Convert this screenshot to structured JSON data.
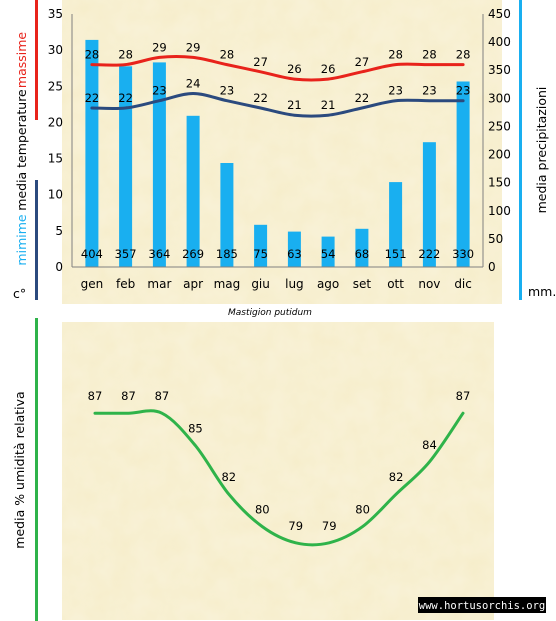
{
  "chart_data": [
    {
      "type": "bar",
      "categories": [
        "gen",
        "feb",
        "mar",
        "apr",
        "mag",
        "giu",
        "lug",
        "ago",
        "set",
        "ott",
        "nov",
        "dic"
      ],
      "y_left_ticks": [
        "0",
        "5",
        "10",
        "15",
        "20",
        "25",
        "30",
        "35"
      ],
      "y_right_ticks": [
        "0",
        "50",
        "100",
        "150",
        "200",
        "250",
        "300",
        "350",
        "400",
        "450"
      ],
      "y_left_range": [
        0,
        35
      ],
      "y_right_range": [
        0,
        450
      ],
      "series": [
        {
          "name": "media precipitazioni",
          "kind": "bar",
          "axis": "right",
          "color": "#19aff0",
          "values": [
            404,
            357,
            364,
            269,
            185,
            75,
            63,
            54,
            68,
            151,
            222,
            330
          ]
        },
        {
          "name": "massime",
          "kind": "line",
          "axis": "left",
          "color": "#e8231b",
          "values": [
            28,
            28,
            29,
            29,
            28,
            27,
            26,
            26,
            27,
            28,
            28,
            28
          ]
        },
        {
          "name": "mimime",
          "kind": "line",
          "axis": "left",
          "color": "#2b4a7e",
          "values": [
            22,
            22,
            23,
            24,
            23,
            22,
            21,
            21,
            22,
            23,
            23,
            23
          ]
        }
      ],
      "labels": {
        "left_max": "massime",
        "left_mid": "media  temperature",
        "left_min": "mimime",
        "left_unit": "c°",
        "right_title": "media  precipitazioni",
        "right_unit": "mm."
      },
      "grid": false,
      "legend": "none"
    },
    {
      "type": "line",
      "categories": [
        "gen",
        "feb",
        "mar",
        "apr",
        "mag",
        "giu",
        "lug",
        "ago",
        "set",
        "ott",
        "nov",
        "dic"
      ],
      "series": [
        {
          "name": "media % umidità relativa",
          "color": "#2fb34a",
          "values": [
            87,
            87,
            87,
            85,
            82,
            80,
            79,
            79,
            80,
            82,
            84,
            87
          ]
        }
      ],
      "ylabel": "media  %  umidità relativa",
      "axis_ticks": false,
      "grid": false,
      "legend": "none"
    }
  ],
  "species": "Mastigion putidum",
  "credit": "www.hortusorchis.org",
  "colors": {
    "bar": "#19aff0",
    "max_line": "#e8231b",
    "min_line": "#2b4a7e",
    "humidity_line": "#2fb34a",
    "parchment": "#f6edca",
    "ribbon_left_red": "#e8231b",
    "ribbon_left_navy": "#2b4a7e",
    "ribbon_right_blue": "#19aff0",
    "ribbon_humidity": "#2fb34a"
  }
}
